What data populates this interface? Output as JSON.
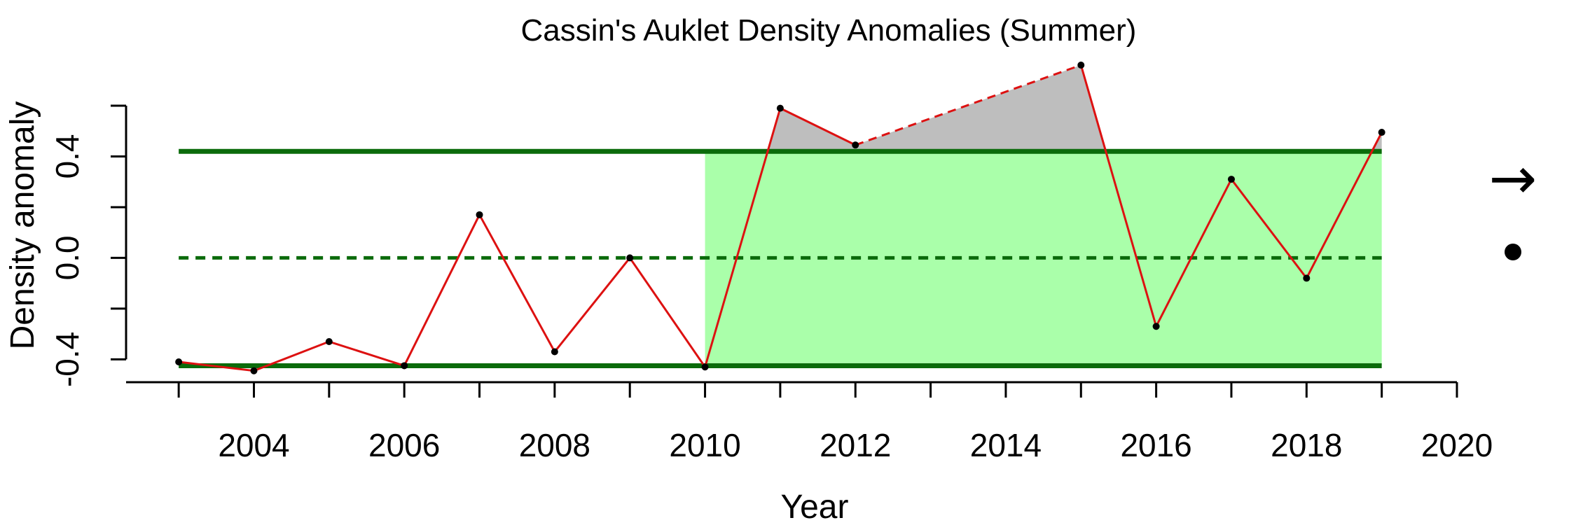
{
  "chart_data": {
    "type": "line",
    "title": "Cassin's Auklet Density Anomalies (Summer)",
    "xlabel": "Year",
    "ylabel": "Density anomaly",
    "xlim": [
      2002.3,
      2020
    ],
    "ylim": [
      -0.49,
      0.76
    ],
    "x_ticks": [
      2003,
      2004,
      2005,
      2006,
      2007,
      2008,
      2009,
      2010,
      2011,
      2012,
      2013,
      2014,
      2015,
      2016,
      2017,
      2018,
      2019,
      2020
    ],
    "x_tick_labels": [
      2004,
      2006,
      2008,
      2010,
      2012,
      2014,
      2016,
      2018,
      2020
    ],
    "y_ticks": [
      -0.4,
      -0.2,
      0.0,
      0.2,
      0.4,
      0.6
    ],
    "y_tick_labels": [
      "-0.4",
      "0.0",
      "0.4"
    ],
    "series": [
      {
        "color": "#dd1111",
        "x": [
          2003,
          2004,
          2005,
          2006,
          2007,
          2008,
          2009,
          2010,
          2011,
          2012,
          2015,
          2016,
          2017,
          2018,
          2019
        ],
        "y": [
          -0.41,
          -0.445,
          -0.33,
          -0.425,
          0.17,
          -0.37,
          0.0,
          -0.43,
          0.59,
          0.445,
          0.76,
          -0.27,
          0.31,
          -0.08,
          0.495
        ]
      }
    ],
    "dashed_gap": [
      2012,
      2015
    ],
    "reference_lines": {
      "mean": 0.0,
      "upper_sd": 0.42,
      "lower_sd": -0.425,
      "x_range": [
        2003,
        2019
      ],
      "color": "#0b6b0b"
    },
    "shaded_recent_period": {
      "x_range": [
        2010,
        2019
      ],
      "color": "#aaffaa"
    },
    "above_upper_fill_color": "#bebebe",
    "symbols": {
      "trend": "→",
      "recent_mean": "●"
    }
  }
}
